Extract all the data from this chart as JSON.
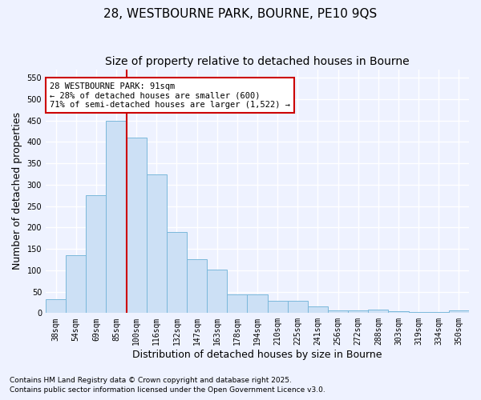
{
  "title_line1": "28, WESTBOURNE PARK, BOURNE, PE10 9QS",
  "title_line2": "Size of property relative to detached houses in Bourne",
  "xlabel": "Distribution of detached houses by size in Bourne",
  "ylabel": "Number of detached properties",
  "categories": [
    "38sqm",
    "54sqm",
    "69sqm",
    "85sqm",
    "100sqm",
    "116sqm",
    "132sqm",
    "147sqm",
    "163sqm",
    "178sqm",
    "194sqm",
    "210sqm",
    "225sqm",
    "241sqm",
    "256sqm",
    "272sqm",
    "288sqm",
    "303sqm",
    "319sqm",
    "334sqm",
    "350sqm"
  ],
  "values": [
    33,
    135,
    275,
    450,
    410,
    325,
    190,
    125,
    101,
    43,
    43,
    29,
    29,
    15,
    6,
    6,
    8,
    4,
    3,
    3,
    6
  ],
  "bar_color": "#cce0f5",
  "bar_edge_color": "#7ab8db",
  "vline_x": 3.5,
  "vline_color": "#cc0000",
  "ylim": [
    0,
    570
  ],
  "yticks": [
    0,
    50,
    100,
    150,
    200,
    250,
    300,
    350,
    400,
    450,
    500,
    550
  ],
  "annotation_text": "28 WESTBOURNE PARK: 91sqm\n← 28% of detached houses are smaller (600)\n71% of semi-detached houses are larger (1,522) →",
  "annotation_box_color": "#ffffff",
  "annotation_box_edge": "#cc0000",
  "footer_line1": "Contains HM Land Registry data © Crown copyright and database right 2025.",
  "footer_line2": "Contains public sector information licensed under the Open Government Licence v3.0.",
  "bg_color": "#eef2ff",
  "plot_bg_color": "#eef2ff",
  "grid_color": "#ffffff",
  "title_fontsize": 11,
  "subtitle_fontsize": 10,
  "tick_fontsize": 7,
  "label_fontsize": 9,
  "annotation_fontsize": 7.5,
  "footer_fontsize": 6.5
}
